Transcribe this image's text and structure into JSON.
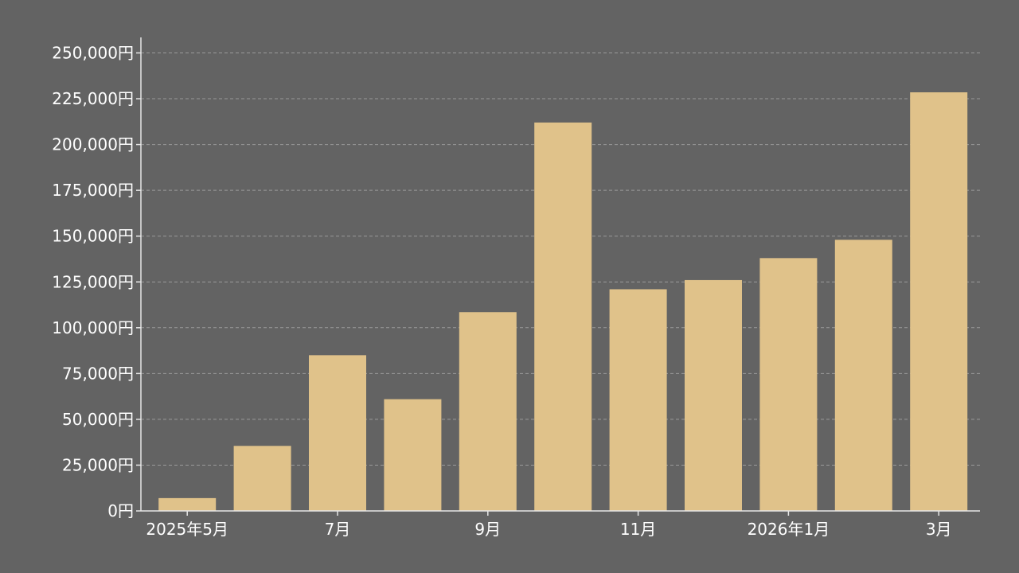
{
  "chart_data": {
    "type": "bar",
    "categories": [
      "2025-05",
      "2025-06",
      "2025-07",
      "2025-08",
      "2025-09",
      "2025-10",
      "2025-11",
      "2025-12",
      "2026-01",
      "2026-02",
      "2026-03"
    ],
    "values": [
      7000,
      35500,
      85000,
      61000,
      108500,
      212000,
      121000,
      126000,
      138000,
      148000,
      228500
    ],
    "x_tick_labels": [
      {
        "category": "2025-05",
        "label": "2025年5月"
      },
      {
        "category": "2025-07",
        "label": "7月"
      },
      {
        "category": "2025-09",
        "label": "9月"
      },
      {
        "category": "2025-11",
        "label": "11月"
      },
      {
        "category": "2026-01",
        "label": "2026年1月"
      },
      {
        "category": "2026-03",
        "label": "3月"
      }
    ],
    "y_ticks": [
      0,
      25000,
      50000,
      75000,
      100000,
      125000,
      150000,
      175000,
      200000,
      225000,
      250000
    ],
    "y_tick_labels": [
      "0円",
      "25,000円",
      "50,000円",
      "75,000円",
      "100,000円",
      "125,000円",
      "150,000円",
      "175,000円",
      "200,000円",
      "225,000円",
      "250,000円"
    ],
    "ylim": [
      0,
      250000
    ],
    "title": "",
    "xlabel": "",
    "ylabel": "",
    "grid": true,
    "legend": "none",
    "colors": {
      "background": "#636363",
      "bar": "#e0c28a",
      "axis": "#e6e6e6",
      "grid": "#9a9a9a",
      "text": "#ffffff"
    }
  }
}
